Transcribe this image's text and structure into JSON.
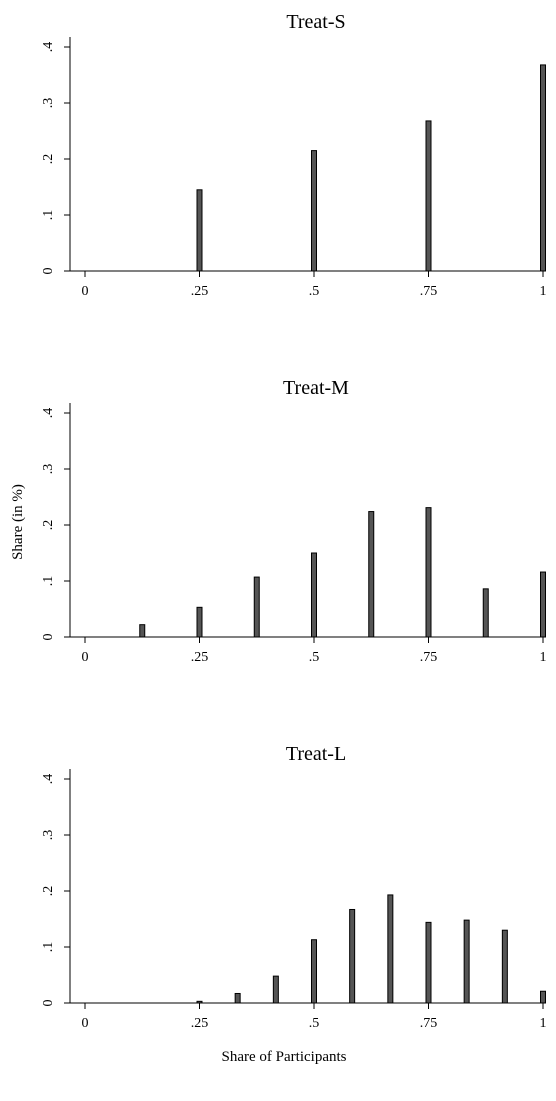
{
  "figure": {
    "ylabel": "Share (in %)",
    "xlabel": "Share of Participants"
  },
  "chart_data": [
    {
      "type": "bar",
      "title": "Treat-S",
      "x": [
        0.25,
        0.5,
        0.75,
        1
      ],
      "values": [
        0.145,
        0.215,
        0.268,
        0.368
      ],
      "xlim": [
        0,
        1
      ],
      "ylim": [
        0,
        0.4
      ],
      "xticks": [
        "0",
        ".25",
        ".5",
        ".75",
        "1"
      ],
      "yticks": [
        "0",
        ".1",
        ".2",
        ".3",
        ".4"
      ],
      "grid": false
    },
    {
      "type": "bar",
      "title": "Treat-M",
      "x": [
        0.125,
        0.25,
        0.375,
        0.5,
        0.625,
        0.75,
        0.875,
        1
      ],
      "values": [
        0.022,
        0.053,
        0.107,
        0.15,
        0.224,
        0.231,
        0.086,
        0.116
      ],
      "xlim": [
        0,
        1
      ],
      "ylim": [
        0,
        0.4
      ],
      "xticks": [
        "0",
        ".25",
        ".5",
        ".75",
        "1"
      ],
      "yticks": [
        "0",
        ".1",
        ".2",
        ".3",
        ".4"
      ],
      "grid": false
    },
    {
      "type": "bar",
      "title": "Treat-L",
      "x": [
        0.25,
        0.3333,
        0.4167,
        0.5,
        0.5833,
        0.6667,
        0.75,
        0.8333,
        0.9167,
        1
      ],
      "values": [
        0.003,
        0.017,
        0.048,
        0.113,
        0.167,
        0.193,
        0.144,
        0.148,
        0.13,
        0.021
      ],
      "xlim": [
        0,
        1
      ],
      "ylim": [
        0,
        0.4
      ],
      "xticks": [
        "0",
        ".25",
        ".5",
        ".75",
        "1"
      ],
      "yticks": [
        "0",
        ".1",
        ".2",
        ".3",
        ".4"
      ],
      "grid": false
    }
  ]
}
